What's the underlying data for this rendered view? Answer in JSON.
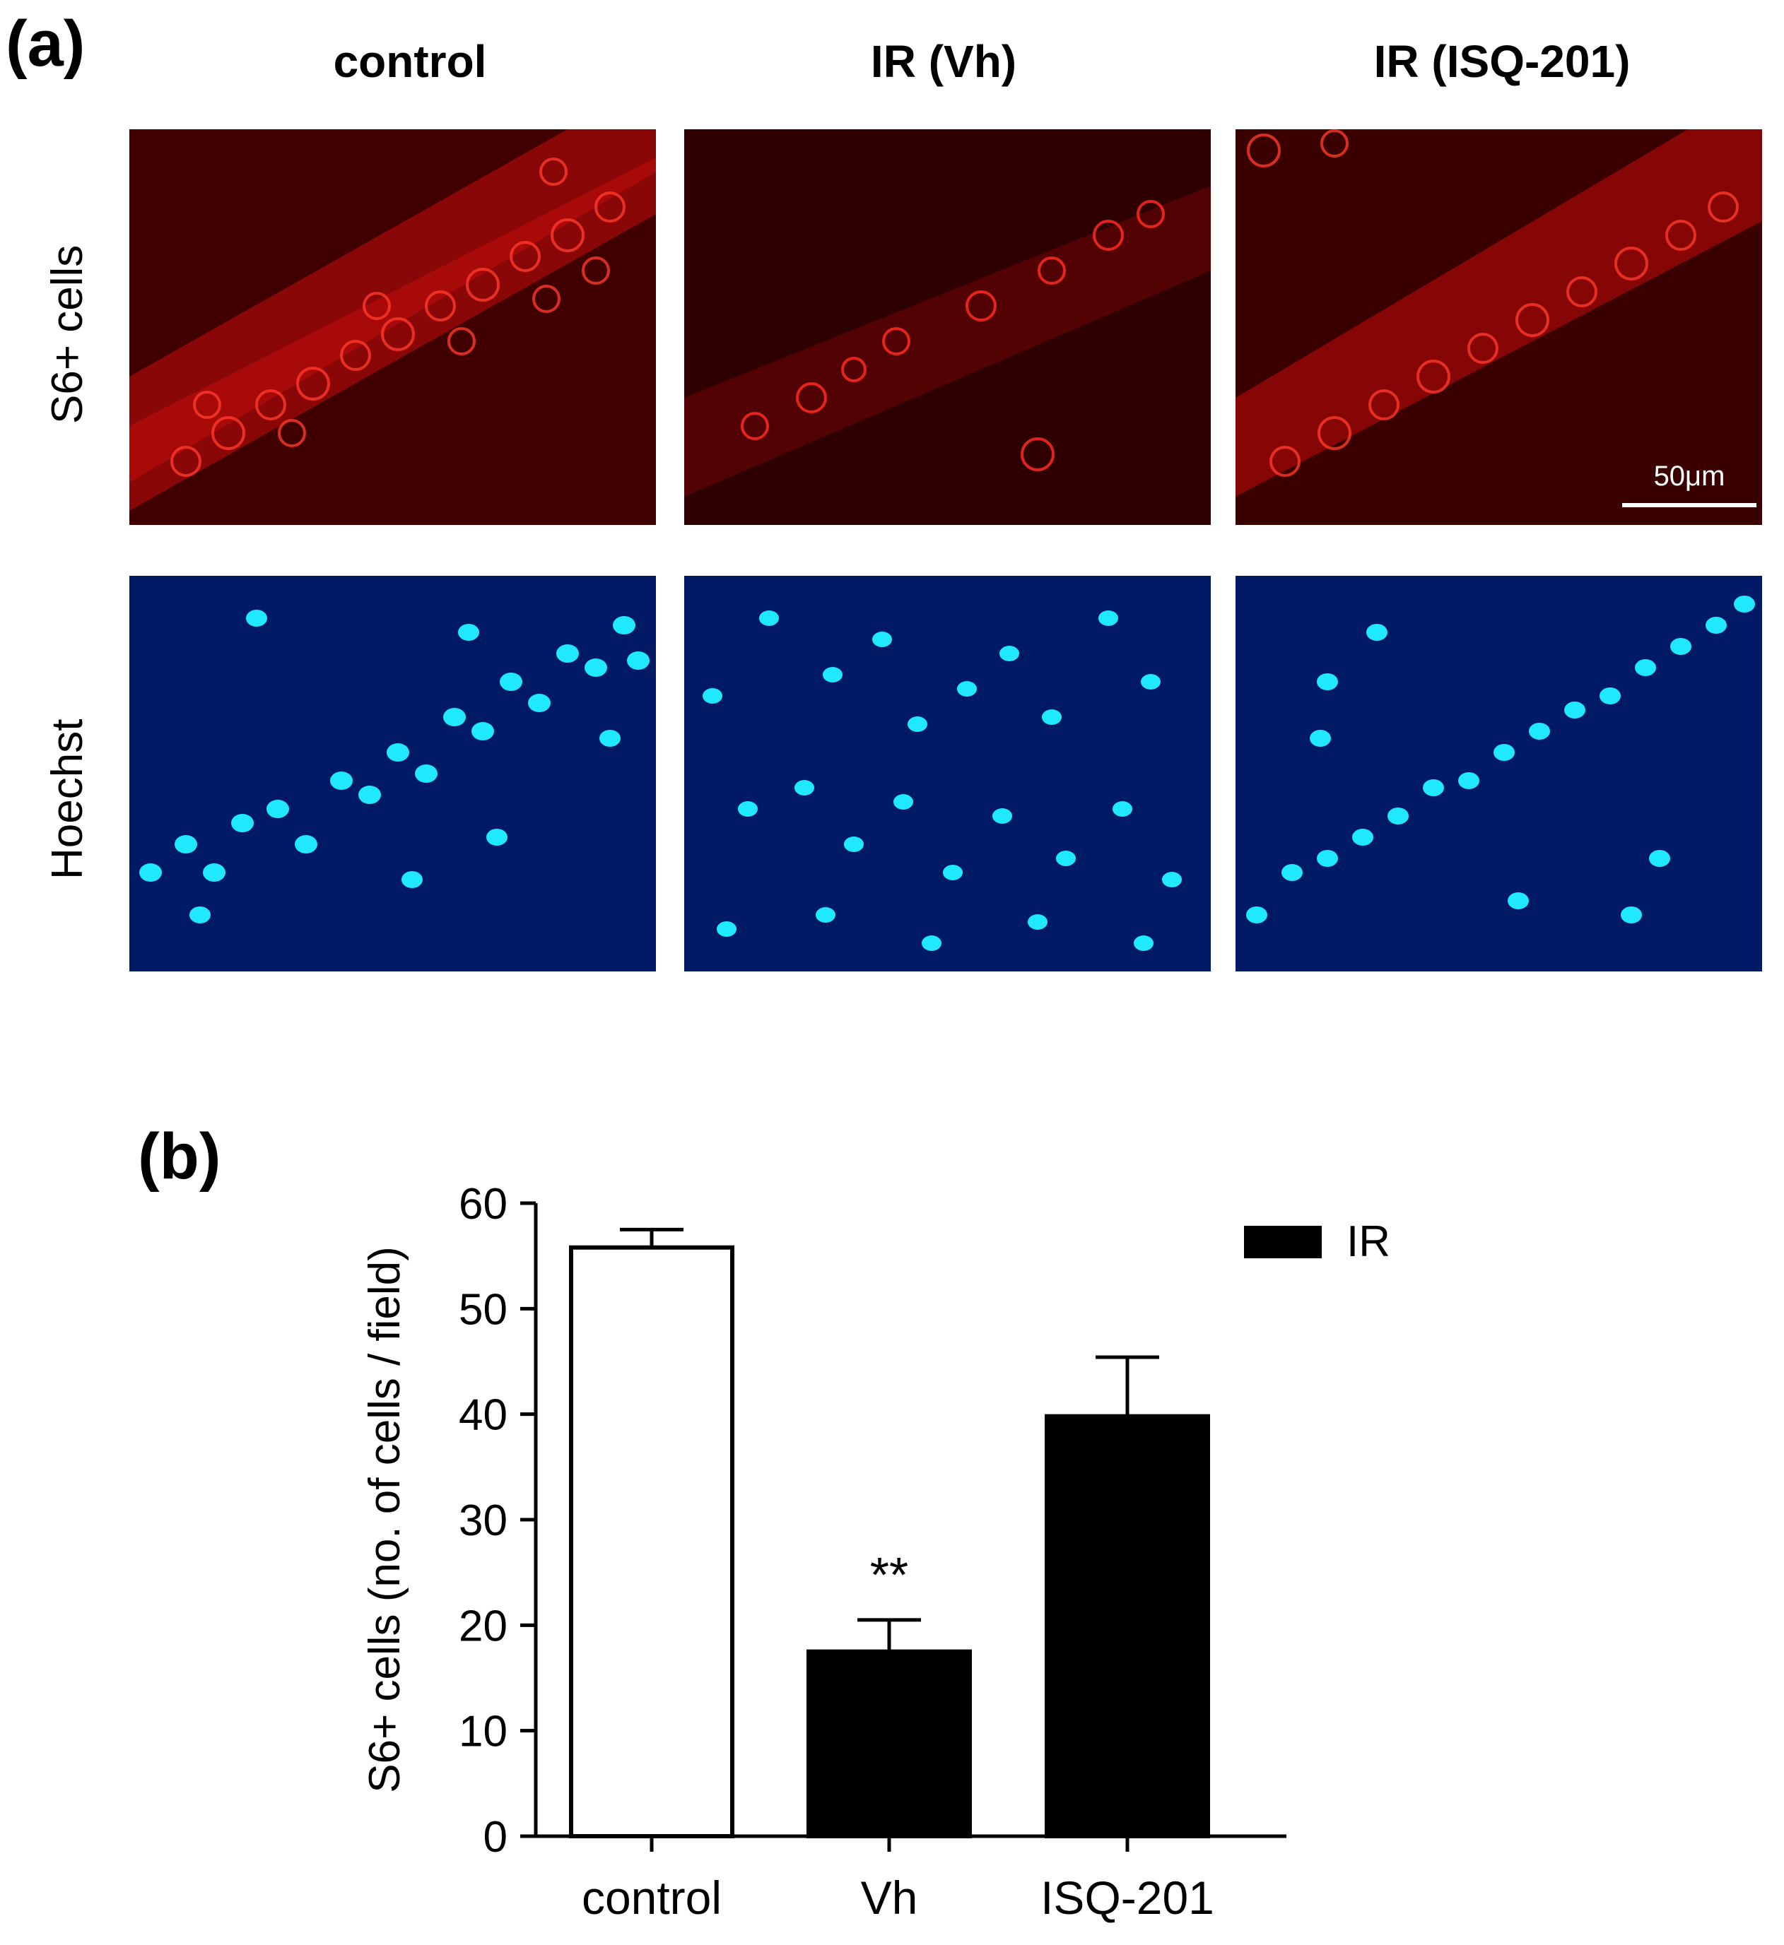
{
  "panel_a": {
    "label": "(a)",
    "columns": [
      "control",
      "IR (Vh)",
      "IR (ISQ-201)"
    ],
    "rows": [
      "S6+ cells",
      "Hoechst"
    ],
    "scale_bar": "50μm",
    "colors": {
      "s6_stain": "#e01010",
      "hoechst_stain": "#20e8ff"
    }
  },
  "chart_data": {
    "panel_label": "(b)",
    "type": "bar",
    "categories": [
      "control",
      "Vh",
      "ISQ-201"
    ],
    "values": [
      55.8,
      17.5,
      39.8
    ],
    "errors": [
      1.7,
      3.0,
      5.6
    ],
    "fills": [
      "#ffffff",
      "#000000",
      "#000000"
    ],
    "significance": [
      "",
      "**",
      ""
    ],
    "ylabel": "S6+ cells (no. of cells / field)",
    "ylim": [
      0,
      60
    ],
    "yticks": [
      0,
      10,
      20,
      30,
      40,
      50,
      60
    ],
    "legend": {
      "label": "IR",
      "color": "#000000",
      "position": "top-right"
    },
    "grid": false
  }
}
